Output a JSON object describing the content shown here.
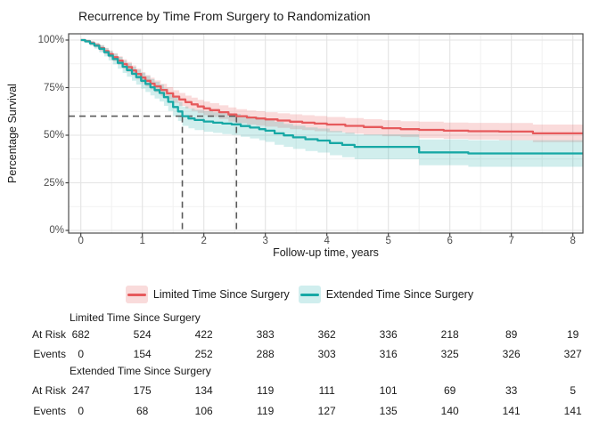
{
  "title": "Recurrence by Time From Surgery to Randomization",
  "chart_data": {
    "type": "line",
    "subtype": "kaplan-meier-step-with-confidence-bands",
    "title": "Recurrence by Time From Surgery to Randomization",
    "xlabel": "Follow-up time, years",
    "ylabel": "Percentage Survival",
    "xlim": [
      -0.2,
      8.16
    ],
    "ylim": [
      0,
      100
    ],
    "x_ticks": [
      0,
      1,
      2,
      3,
      4,
      5,
      6,
      7,
      8
    ],
    "y_tick_values": [
      0,
      25,
      50,
      75,
      100
    ],
    "y_tick_labels": [
      "0%",
      "25%",
      "50%",
      "75%",
      "100%"
    ],
    "grid": "major and minor, light gray on white, dark panel border",
    "legend_position": "bottom",
    "reference_lines": {
      "survival_pct": 60,
      "times_years": [
        1.65,
        2.53
      ],
      "style": "dashed gray, horizontal at 60% and vertical drops at median-style crossings",
      "color": "#5a5a5a"
    },
    "series": [
      {
        "name": "Limited Time Since Surgery",
        "color": "#E65A5C",
        "band_color": "rgba(230,90,92,0.22)",
        "points_t_pct_halfwidth": [
          [
            0,
            100,
            0.4
          ],
          [
            0.07,
            99.4,
            0.7
          ],
          [
            0.15,
            98.4,
            1.0
          ],
          [
            0.22,
            97.3,
            1.2
          ],
          [
            0.3,
            95.8,
            1.5
          ],
          [
            0.38,
            94.2,
            1.7
          ],
          [
            0.45,
            92.6,
            1.9
          ],
          [
            0.52,
            91.0,
            2.1
          ],
          [
            0.6,
            89.2,
            2.3
          ],
          [
            0.68,
            87.4,
            2.5
          ],
          [
            0.75,
            85.8,
            2.6
          ],
          [
            0.83,
            84.0,
            2.7
          ],
          [
            0.9,
            82.2,
            2.8
          ],
          [
            0.98,
            80.3,
            2.9
          ],
          [
            1.05,
            78.6,
            3.0
          ],
          [
            1.13,
            77.1,
            3.1
          ],
          [
            1.2,
            75.7,
            3.1
          ],
          [
            1.3,
            73.8,
            3.2
          ],
          [
            1.4,
            72.0,
            3.3
          ],
          [
            1.5,
            70.3,
            3.3
          ],
          [
            1.6,
            68.8,
            3.4
          ],
          [
            1.7,
            67.4,
            3.4
          ],
          [
            1.8,
            66.2,
            3.5
          ],
          [
            1.9,
            65.1,
            3.5
          ],
          [
            2.0,
            64.1,
            3.6
          ],
          [
            2.1,
            63.2,
            3.6
          ],
          [
            2.25,
            62.1,
            3.6
          ],
          [
            2.4,
            60.9,
            3.7
          ],
          [
            2.53,
            60.0,
            3.7
          ],
          [
            2.7,
            59.3,
            3.7
          ],
          [
            2.85,
            58.8,
            3.8
          ],
          [
            3.0,
            58.3,
            3.8
          ],
          [
            3.2,
            57.7,
            3.8
          ],
          [
            3.4,
            57.1,
            3.9
          ],
          [
            3.6,
            56.6,
            3.9
          ],
          [
            3.8,
            56.1,
            4.0
          ],
          [
            4.0,
            55.6,
            4.0
          ],
          [
            4.3,
            54.9,
            4.1
          ],
          [
            4.6,
            54.3,
            4.1
          ],
          [
            4.9,
            53.7,
            4.2
          ],
          [
            5.2,
            53.2,
            4.2
          ],
          [
            5.5,
            52.8,
            4.3
          ],
          [
            5.9,
            52.4,
            4.3
          ],
          [
            6.3,
            52.1,
            4.4
          ],
          [
            6.8,
            51.9,
            4.5
          ],
          [
            7.35,
            51.0,
            4.6
          ],
          [
            8.16,
            51.0,
            4.6
          ]
        ]
      },
      {
        "name": "Extended Time Since Surgery",
        "color": "#17A8A5",
        "band_color": "rgba(23,168,165,0.20)",
        "points_t_pct_halfwidth": [
          [
            0,
            100,
            0.4
          ],
          [
            0.07,
            99.3,
            0.8
          ],
          [
            0.15,
            98.2,
            1.2
          ],
          [
            0.22,
            97.0,
            1.5
          ],
          [
            0.3,
            95.4,
            1.9
          ],
          [
            0.38,
            93.6,
            2.2
          ],
          [
            0.45,
            91.8,
            2.5
          ],
          [
            0.52,
            90.0,
            2.8
          ],
          [
            0.6,
            88.0,
            3.1
          ],
          [
            0.68,
            86.0,
            3.3
          ],
          [
            0.75,
            84.2,
            3.5
          ],
          [
            0.83,
            82.3,
            3.7
          ],
          [
            0.9,
            80.5,
            3.9
          ],
          [
            0.98,
            78.6,
            4.1
          ],
          [
            1.05,
            76.9,
            4.2
          ],
          [
            1.13,
            75.2,
            4.3
          ],
          [
            1.2,
            73.7,
            4.4
          ],
          [
            1.28,
            72.2,
            4.5
          ],
          [
            1.35,
            70.0,
            4.6
          ],
          [
            1.42,
            67.5,
            4.8
          ],
          [
            1.5,
            64.8,
            4.9
          ],
          [
            1.58,
            62.5,
            5.0
          ],
          [
            1.65,
            60.0,
            5.1
          ],
          [
            1.75,
            58.8,
            5.2
          ],
          [
            1.85,
            58.0,
            5.3
          ],
          [
            2.0,
            57.2,
            5.4
          ],
          [
            2.15,
            56.6,
            5.4
          ],
          [
            2.3,
            56.1,
            5.5
          ],
          [
            2.45,
            55.7,
            5.5
          ],
          [
            2.6,
            54.8,
            5.6
          ],
          [
            2.75,
            54.0,
            5.7
          ],
          [
            2.9,
            53.2,
            5.8
          ],
          [
            3.0,
            52.4,
            5.9
          ],
          [
            3.15,
            51.0,
            6.0
          ],
          [
            3.3,
            49.9,
            6.0
          ],
          [
            3.45,
            48.9,
            6.1
          ],
          [
            3.65,
            47.9,
            6.2
          ],
          [
            3.85,
            47.2,
            6.3
          ],
          [
            4.05,
            45.9,
            6.4
          ],
          [
            4.25,
            44.9,
            6.5
          ],
          [
            4.45,
            43.9,
            6.5
          ],
          [
            5.5,
            41.0,
            6.8
          ],
          [
            6.3,
            40.4,
            7.0
          ],
          [
            8.16,
            40.4,
            7.0
          ]
        ]
      }
    ]
  },
  "axes": {
    "ylabel": "Percentage Survival",
    "xlabel": "Follow-up time, years"
  },
  "legend": {
    "items": [
      {
        "label": "Limited Time Since Surgery",
        "line_color": "#E65A5C",
        "key_fill": "#F9DBDB"
      },
      {
        "label": "Extended Time Since Surgery",
        "line_color": "#17A8A5",
        "key_fill": "#D0EEEE"
      }
    ]
  },
  "risk_table": {
    "time_points": [
      0,
      1,
      2,
      3,
      4,
      5,
      6,
      7,
      8
    ],
    "groups": [
      {
        "name": "Limited Time Since Surgery",
        "rows": [
          {
            "label": "At Risk",
            "values": [
              "682",
              "524",
              "422",
              "383",
              "362",
              "336",
              "218",
              "89",
              "19"
            ]
          },
          {
            "label": "Events",
            "values": [
              "0",
              "154",
              "252",
              "288",
              "303",
              "316",
              "325",
              "326",
              "327"
            ]
          }
        ]
      },
      {
        "name": "Extended Time Since Surgery",
        "rows": [
          {
            "label": "At Risk",
            "values": [
              "247",
              "175",
              "134",
              "119",
              "111",
              "101",
              "69",
              "33",
              "5"
            ]
          },
          {
            "label": "Events",
            "values": [
              "0",
              "68",
              "106",
              "119",
              "127",
              "135",
              "140",
              "141",
              "141"
            ]
          }
        ]
      }
    ]
  },
  "colors": {
    "panel_border": "#4d4d4d",
    "grid_major": "#e3e3e3",
    "grid_minor": "#f1f1f1",
    "tick_label": "#4d4d4d",
    "dashed_reference": "#5a5a5a",
    "background": "#ffffff"
  }
}
